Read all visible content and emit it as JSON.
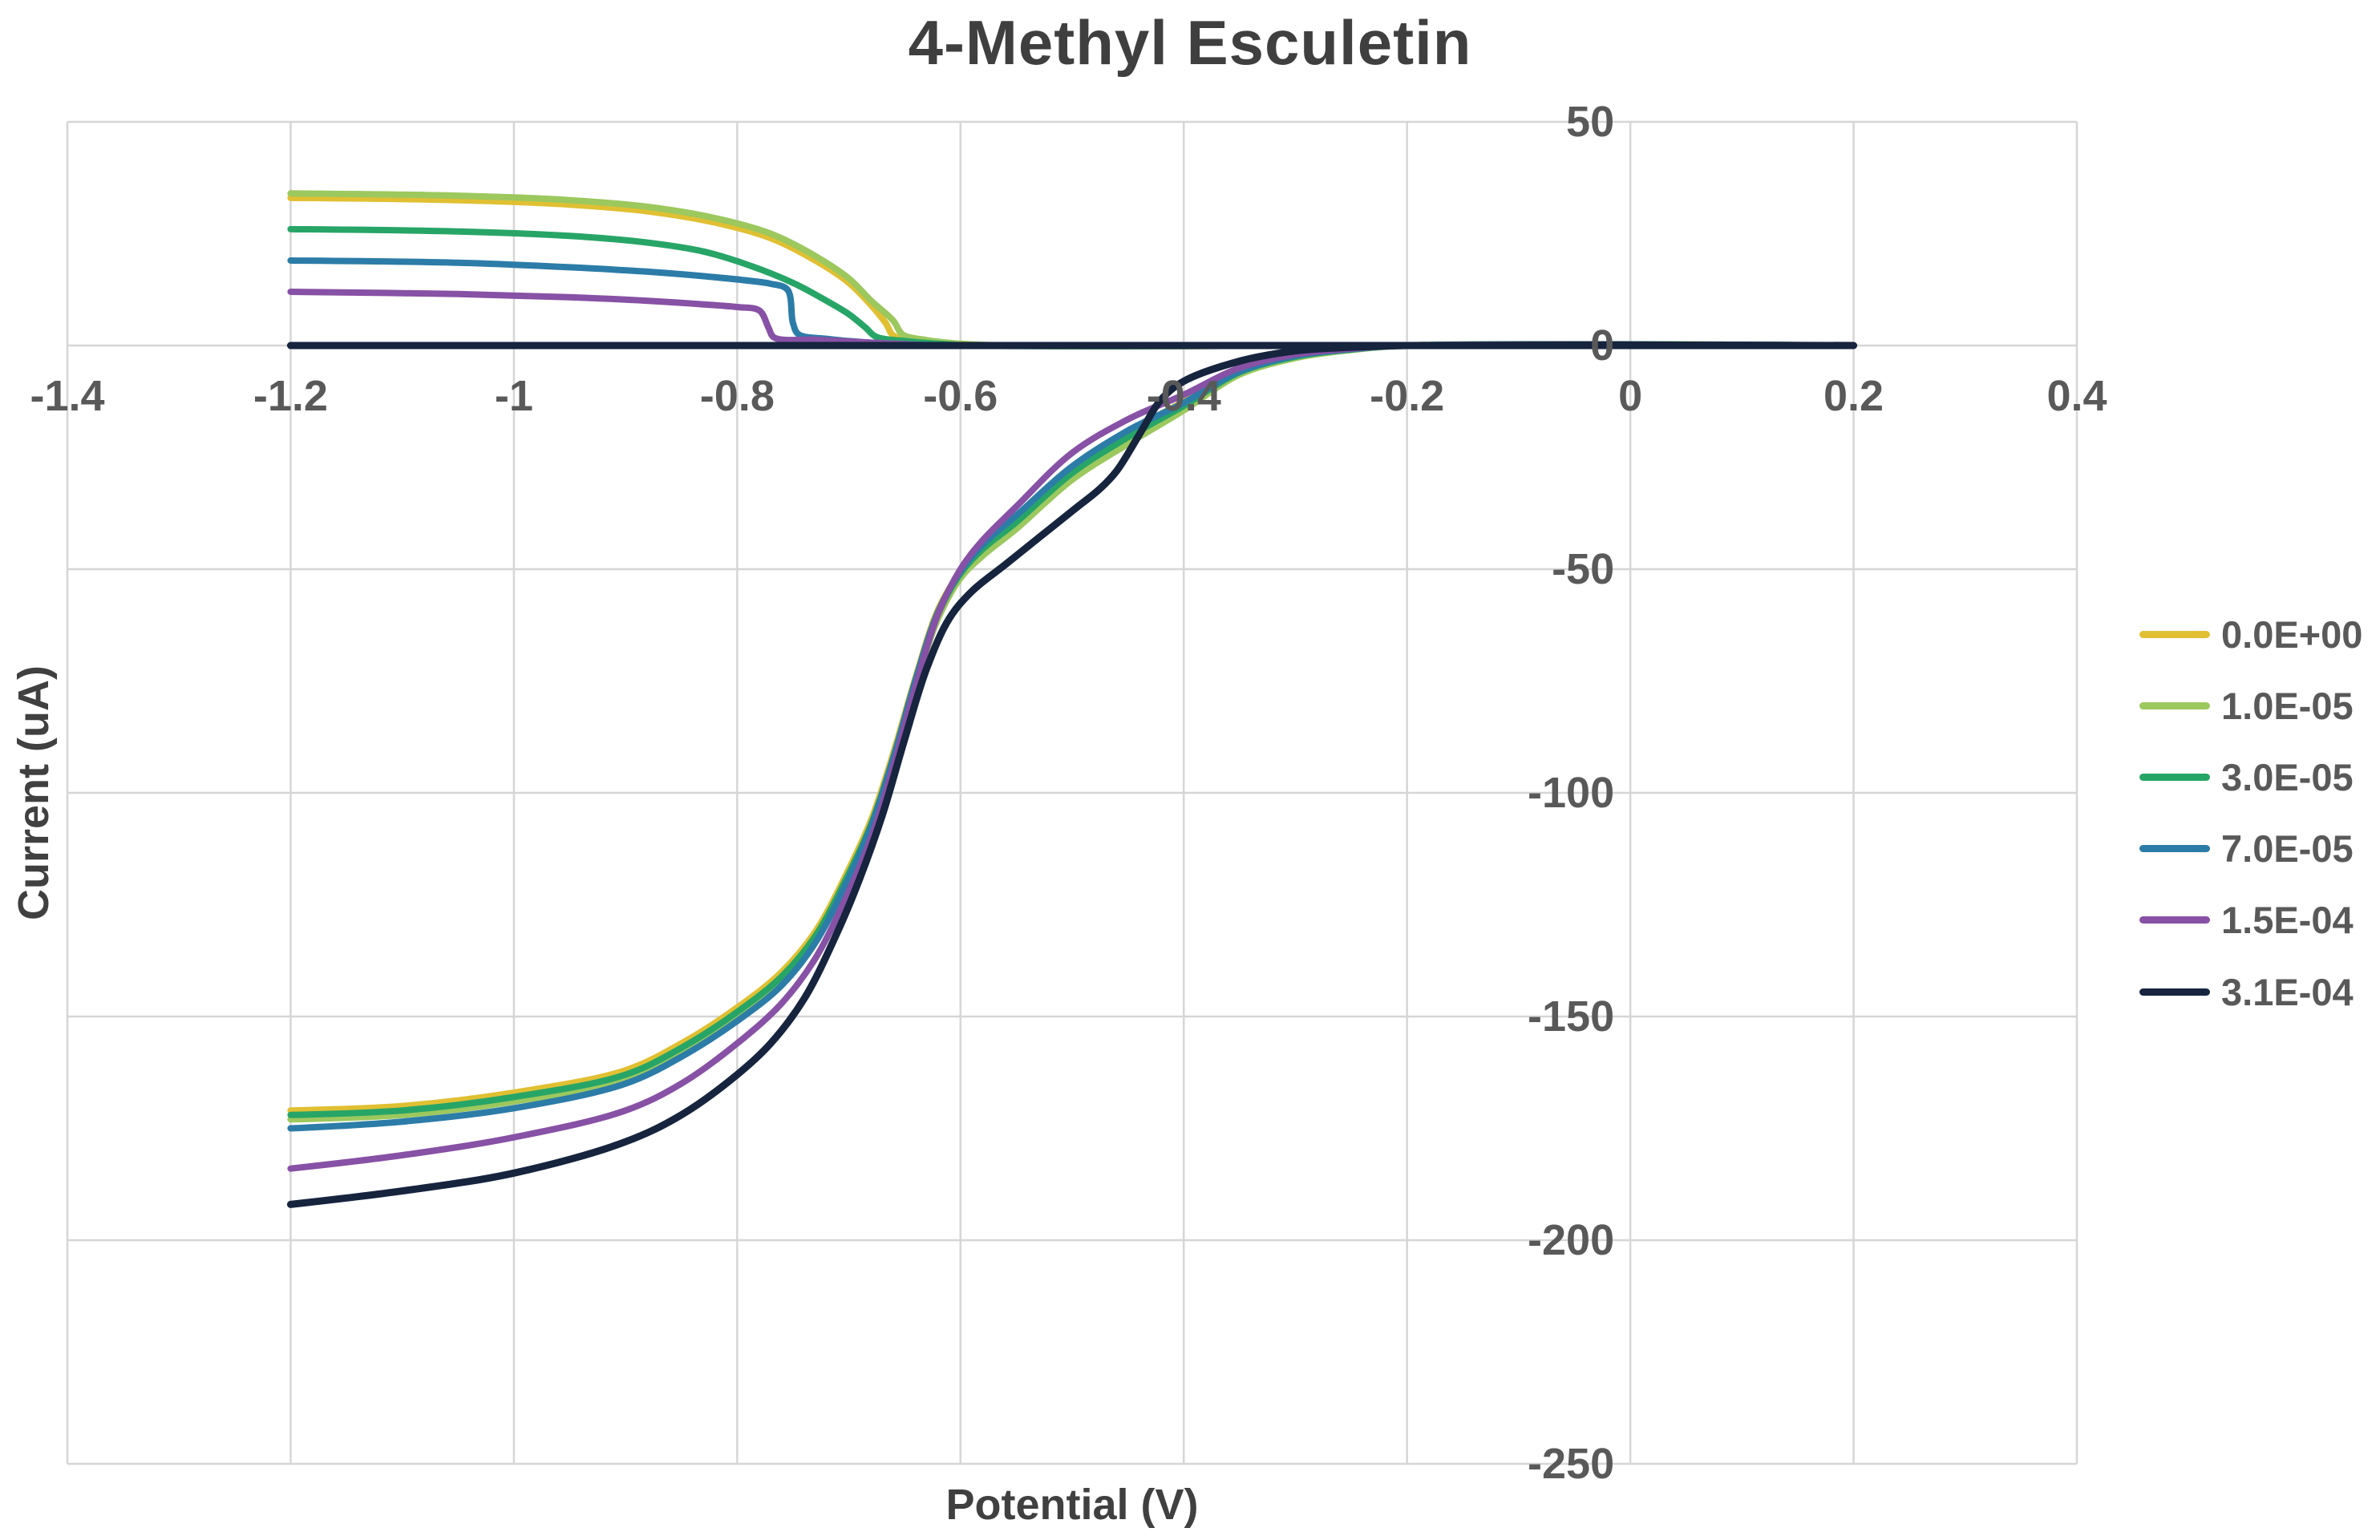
{
  "title": "4-Methyl Esculetin",
  "colors": {
    "background": "#FFFFFF",
    "gridline": "#D6D6D6",
    "plot_border": "#D6D6D6",
    "title_text": "#3F3F3F",
    "axis_title_text": "#404040",
    "tick_text": "#595959",
    "legend_text": "#595959"
  },
  "chart_data": {
    "type": "line",
    "title": "4-Methyl Esculetin",
    "xlabel": "Potential (V)",
    "ylabel": "Current (uA)",
    "grid": true,
    "legend_position": "right",
    "x_axis": {
      "min": -1.4,
      "max": 0.4,
      "tick_step": 0.2,
      "tick_labels": [
        "-1.4",
        "-1.2",
        "-1",
        "-0.8",
        "-0.6",
        "-0.4",
        "-0.2",
        "0",
        "0.2",
        "0.4"
      ],
      "tick_values": [
        -1.4,
        -1.2,
        -1.0,
        -0.8,
        -0.6,
        -0.4,
        -0.2,
        0,
        0.2,
        0.4
      ]
    },
    "y_axis": {
      "min": -250,
      "max": 50,
      "tick_step": 50,
      "tick_labels": [
        "50",
        "0",
        "-50",
        "-100",
        "-150",
        "-200",
        "-250"
      ],
      "tick_values": [
        50,
        0,
        -50,
        -100,
        -150,
        -200,
        -250
      ]
    },
    "series": [
      {
        "name": "0.0E+00",
        "color": "#E0C032",
        "stroke_width": 8,
        "points": [
          [
            -1.2,
            33
          ],
          [
            -1.05,
            32.5
          ],
          [
            -0.95,
            31.5
          ],
          [
            -0.88,
            30
          ],
          [
            -0.82,
            27.5
          ],
          [
            -0.77,
            24
          ],
          [
            -0.73,
            19
          ],
          [
            -0.7,
            14
          ],
          [
            -0.68,
            9
          ],
          [
            -0.667,
            5
          ],
          [
            -0.66,
            2.2
          ],
          [
            -0.64,
            1.2
          ],
          [
            -0.61,
            0.4
          ],
          [
            -0.57,
            0
          ],
          [
            -0.2,
            0
          ],
          [
            0.2,
            0
          ],
          [
            -0.2,
            0
          ],
          [
            -0.25,
            -0.8
          ],
          [
            -0.3,
            -2.2
          ],
          [
            -0.35,
            -5.5
          ],
          [
            -0.4,
            -12.5
          ],
          [
            -0.45,
            -19.5
          ],
          [
            -0.5,
            -27.5
          ],
          [
            -0.55,
            -38.5
          ],
          [
            -0.58,
            -44.5
          ],
          [
            -0.6,
            -50.5
          ],
          [
            -0.62,
            -59
          ],
          [
            -0.64,
            -74
          ],
          [
            -0.66,
            -91
          ],
          [
            -0.68,
            -106
          ],
          [
            -0.7,
            -117
          ],
          [
            -0.73,
            -131
          ],
          [
            -0.76,
            -140
          ],
          [
            -0.8,
            -148
          ],
          [
            -0.85,
            -156
          ],
          [
            -0.9,
            -162
          ],
          [
            -1.0,
            -167
          ],
          [
            -1.1,
            -170
          ],
          [
            -1.2,
            -171
          ]
        ]
      },
      {
        "name": "1.0E-05",
        "color": "#9CC85E",
        "stroke_width": 8,
        "points": [
          [
            -1.2,
            34
          ],
          [
            -1.05,
            33.5
          ],
          [
            -0.95,
            32.5
          ],
          [
            -0.88,
            31
          ],
          [
            -0.82,
            28.5
          ],
          [
            -0.77,
            25
          ],
          [
            -0.73,
            20
          ],
          [
            -0.7,
            15
          ],
          [
            -0.68,
            10
          ],
          [
            -0.66,
            5.5
          ],
          [
            -0.652,
            2.5
          ],
          [
            -0.63,
            1.2
          ],
          [
            -0.6,
            0.4
          ],
          [
            -0.56,
            0
          ],
          [
            -0.2,
            0
          ],
          [
            0.2,
            0
          ],
          [
            -0.2,
            0
          ],
          [
            -0.25,
            -1
          ],
          [
            -0.3,
            -2.8
          ],
          [
            -0.35,
            -6.5
          ],
          [
            -0.4,
            -14.5
          ],
          [
            -0.45,
            -22
          ],
          [
            -0.5,
            -30
          ],
          [
            -0.55,
            -41
          ],
          [
            -0.58,
            -47
          ],
          [
            -0.6,
            -52
          ],
          [
            -0.62,
            -61
          ],
          [
            -0.64,
            -76
          ],
          [
            -0.66,
            -93
          ],
          [
            -0.68,
            -108
          ],
          [
            -0.7,
            -119
          ],
          [
            -0.73,
            -133
          ],
          [
            -0.76,
            -142
          ],
          [
            -0.8,
            -150
          ],
          [
            -0.85,
            -158
          ],
          [
            -0.9,
            -164
          ],
          [
            -1.0,
            -169
          ],
          [
            -1.1,
            -172
          ],
          [
            -1.2,
            -173
          ]
        ]
      },
      {
        "name": "3.0E-05",
        "color": "#27A567",
        "stroke_width": 8,
        "points": [
          [
            -1.2,
            26
          ],
          [
            -1.05,
            25.5
          ],
          [
            -0.95,
            24.5
          ],
          [
            -0.88,
            23
          ],
          [
            -0.83,
            21
          ],
          [
            -0.79,
            18
          ],
          [
            -0.75,
            14
          ],
          [
            -0.72,
            10
          ],
          [
            -0.7,
            7
          ],
          [
            -0.685,
            4
          ],
          [
            -0.676,
            2
          ],
          [
            -0.65,
            1
          ],
          [
            -0.62,
            0.4
          ],
          [
            -0.59,
            0
          ],
          [
            -0.2,
            0
          ],
          [
            0.2,
            0
          ],
          [
            -0.2,
            0
          ],
          [
            -0.25,
            -0.9
          ],
          [
            -0.3,
            -2.5
          ],
          [
            -0.35,
            -6
          ],
          [
            -0.4,
            -13.5
          ],
          [
            -0.45,
            -20.5
          ],
          [
            -0.5,
            -28.5
          ],
          [
            -0.55,
            -39.5
          ],
          [
            -0.58,
            -45.5
          ],
          [
            -0.6,
            -51
          ],
          [
            -0.62,
            -60
          ],
          [
            -0.64,
            -75
          ],
          [
            -0.66,
            -92
          ],
          [
            -0.68,
            -107
          ],
          [
            -0.7,
            -118
          ],
          [
            -0.73,
            -132
          ],
          [
            -0.76,
            -141
          ],
          [
            -0.8,
            -149
          ],
          [
            -0.85,
            -157
          ],
          [
            -0.9,
            -163
          ],
          [
            -1.0,
            -168
          ],
          [
            -1.1,
            -171
          ],
          [
            -1.2,
            -172
          ]
        ]
      },
      {
        "name": "7.0E-05",
        "color": "#2C7CA8",
        "stroke_width": 8,
        "points": [
          [
            -1.2,
            19
          ],
          [
            -1.05,
            18.5
          ],
          [
            -0.95,
            17.5
          ],
          [
            -0.88,
            16.5
          ],
          [
            -0.83,
            15.5
          ],
          [
            -0.79,
            14.5
          ],
          [
            -0.77,
            13.8
          ],
          [
            -0.755,
            12.5
          ],
          [
            -0.75,
            5
          ],
          [
            -0.745,
            2.5
          ],
          [
            -0.72,
            1.5
          ],
          [
            -0.69,
            0.8
          ],
          [
            -0.65,
            0.3
          ],
          [
            -0.61,
            0
          ],
          [
            -0.2,
            0
          ],
          [
            0.2,
            0
          ],
          [
            -0.2,
            0
          ],
          [
            -0.25,
            -0.8
          ],
          [
            -0.3,
            -2.3
          ],
          [
            -0.35,
            -5.8
          ],
          [
            -0.4,
            -12.8
          ],
          [
            -0.45,
            -19
          ],
          [
            -0.5,
            -27
          ],
          [
            -0.55,
            -38
          ],
          [
            -0.58,
            -44.5
          ],
          [
            -0.6,
            -50.5
          ],
          [
            -0.62,
            -59.5
          ],
          [
            -0.64,
            -74.5
          ],
          [
            -0.66,
            -92
          ],
          [
            -0.68,
            -107.5
          ],
          [
            -0.7,
            -119
          ],
          [
            -0.73,
            -133.5
          ],
          [
            -0.76,
            -143
          ],
          [
            -0.8,
            -151
          ],
          [
            -0.85,
            -159
          ],
          [
            -0.9,
            -165
          ],
          [
            -1.0,
            -170.5
          ],
          [
            -1.1,
            -173.5
          ],
          [
            -1.2,
            -175
          ]
        ]
      },
      {
        "name": "1.5E-04",
        "color": "#8751A5",
        "stroke_width": 8,
        "points": [
          [
            -1.2,
            12
          ],
          [
            -1.05,
            11.5
          ],
          [
            -0.95,
            10.8
          ],
          [
            -0.88,
            10
          ],
          [
            -0.83,
            9.2
          ],
          [
            -0.8,
            8.6
          ],
          [
            -0.78,
            7.8
          ],
          [
            -0.772,
            4
          ],
          [
            -0.767,
            1.8
          ],
          [
            -0.73,
            1.3
          ],
          [
            -0.7,
            0.9
          ],
          [
            -0.66,
            0.4
          ],
          [
            -0.62,
            0
          ],
          [
            -0.2,
            0
          ],
          [
            0.2,
            0
          ],
          [
            -0.2,
            0
          ],
          [
            -0.25,
            -0.7
          ],
          [
            -0.3,
            -2
          ],
          [
            -0.35,
            -5
          ],
          [
            -0.4,
            -11
          ],
          [
            -0.45,
            -16.5
          ],
          [
            -0.5,
            -24
          ],
          [
            -0.55,
            -36
          ],
          [
            -0.58,
            -43.5
          ],
          [
            -0.6,
            -50
          ],
          [
            -0.62,
            -60
          ],
          [
            -0.64,
            -76
          ],
          [
            -0.66,
            -94
          ],
          [
            -0.68,
            -110
          ],
          [
            -0.7,
            -122
          ],
          [
            -0.73,
            -137
          ],
          [
            -0.76,
            -147
          ],
          [
            -0.8,
            -156
          ],
          [
            -0.85,
            -165
          ],
          [
            -0.9,
            -171
          ],
          [
            -1.0,
            -177
          ],
          [
            -1.1,
            -181
          ],
          [
            -1.2,
            -184
          ]
        ]
      },
      {
        "name": "3.1E-04",
        "color": "#16243E",
        "stroke_width": 9,
        "points": [
          [
            -1.2,
            0
          ],
          [
            -0.5,
            0
          ],
          [
            0.2,
            0
          ],
          [
            -0.2,
            0
          ],
          [
            -0.26,
            -0.5
          ],
          [
            -0.3,
            -1.2
          ],
          [
            -0.35,
            -3.5
          ],
          [
            -0.4,
            -8
          ],
          [
            -0.42,
            -12
          ],
          [
            -0.44,
            -20
          ],
          [
            -0.46,
            -28
          ],
          [
            -0.475,
            -32
          ],
          [
            -0.5,
            -37
          ],
          [
            -0.53,
            -43
          ],
          [
            -0.56,
            -49
          ],
          [
            -0.59,
            -55
          ],
          [
            -0.61,
            -61
          ],
          [
            -0.63,
            -72
          ],
          [
            -0.65,
            -88
          ],
          [
            -0.67,
            -105
          ],
          [
            -0.69,
            -119
          ],
          [
            -0.71,
            -131
          ],
          [
            -0.74,
            -146
          ],
          [
            -0.77,
            -156
          ],
          [
            -0.8,
            -163
          ],
          [
            -0.85,
            -172
          ],
          [
            -0.9,
            -178
          ],
          [
            -1.0,
            -185
          ],
          [
            -1.1,
            -189
          ],
          [
            -1.2,
            -192
          ]
        ]
      }
    ]
  },
  "legend": {
    "items": [
      "0.0E+00",
      "1.0E-05",
      "3.0E-05",
      "7.0E-05",
      "1.5E-04",
      "3.1E-04"
    ]
  }
}
